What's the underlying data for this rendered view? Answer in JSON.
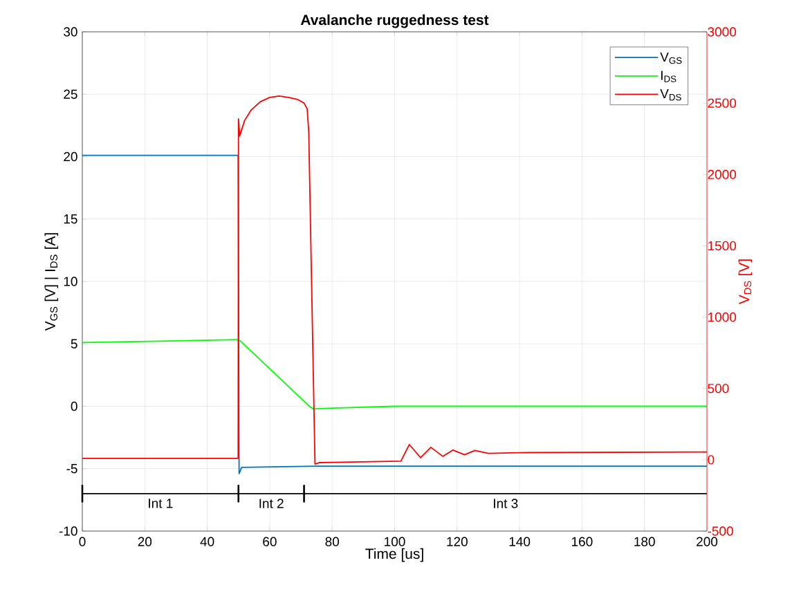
{
  "chart_data": {
    "type": "line",
    "title": "Avalanche ruggedness test",
    "xlabel": "Time [us]",
    "ylabel": "V$_{GS}$ [V]   |   I$_{DS}$ [A]",
    "y2label": "V$_{DS}$ [V]",
    "xlim": [
      0,
      200
    ],
    "xticks": [
      0,
      20,
      40,
      60,
      80,
      100,
      120,
      140,
      160,
      180,
      200
    ],
    "ylim": [
      -10,
      30
    ],
    "yticks": [
      -10,
      -5,
      0,
      5,
      10,
      15,
      20,
      25,
      30
    ],
    "y2lim": [
      -500,
      3000
    ],
    "y2ticks": [
      -500,
      0,
      500,
      1000,
      1500,
      2000,
      2500,
      3000
    ],
    "grid": true,
    "legend": "top right",
    "series": [
      {
        "name": "V$_{GS}$",
        "color": "#0072bd",
        "x": [
          0,
          49.9,
          50.2,
          51,
          75,
          200
        ],
        "values": [
          20.1,
          20.1,
          -5.4,
          -4.9,
          -4.8,
          -4.8
        ]
      },
      {
        "name": "I$_{DS}$",
        "color": "#00ff00",
        "x": [
          0,
          50,
          50.8,
          72.6,
          74,
          80,
          100,
          200
        ],
        "values": [
          5.1,
          5.34,
          5.19,
          0.02,
          -0.22,
          -0.15,
          0,
          0
        ]
      },
      {
        "name": "V$_{DS}$",
        "color": "#ff0000",
        "axis": "y2",
        "x": [
          0,
          49.9,
          50,
          50.4,
          52,
          54,
          57,
          60,
          63,
          66,
          69,
          71,
          72,
          72.5,
          74.5,
          76,
          102,
          104.7,
          108.3,
          111.6,
          115.4,
          118.7,
          122.4,
          125.7,
          130,
          140,
          200
        ],
        "values": [
          10,
          10,
          2390,
          2270,
          2380,
          2450,
          2510,
          2540,
          2550,
          2540,
          2525,
          2500,
          2460,
          2300,
          -30,
          -20,
          -10,
          107,
          15,
          87,
          24,
          68,
          35,
          65,
          45,
          50,
          54
        ]
      },
      {
        "color": "#000000",
        "x": [
          0,
          50,
          71,
          200
        ],
        "values": [
          -7,
          -7,
          -7,
          -7
        ],
        "errors": [
          0.7,
          0.7,
          0.7,
          null
        ]
      }
    ],
    "annotations": [
      "Int 1",
      "Int 2",
      "Int 3"
    ]
  }
}
